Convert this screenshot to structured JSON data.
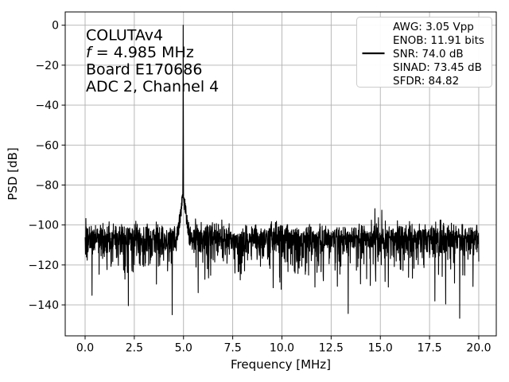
{
  "chart_data": {
    "type": "line",
    "title": "",
    "xlabel": "Frequency [MHz]",
    "ylabel": "PSD [dB]",
    "xlim": [
      -1.01,
      20.89
    ],
    "ylim": [
      -155.5,
      6.65
    ],
    "xticks": [
      0.0,
      2.5,
      5.0,
      7.5,
      10.0,
      12.5,
      15.0,
      17.5,
      20.0
    ],
    "yticks": [
      0,
      -20,
      -40,
      -60,
      -80,
      -100,
      -120,
      -140
    ],
    "grid": true,
    "legend_position": "upper right",
    "colors": {
      "trace": "#000000",
      "grid": "#b0b0b0",
      "axes": "#000000",
      "legend_edge": "#cccccc",
      "background": "#ffffff"
    },
    "annotation": {
      "lines": [
        "COLUTAv4",
        "f = 4.985 MHz",
        "Board E170686",
        "ADC 2, Channel 4"
      ],
      "italic_f_line": 1
    },
    "legend": {
      "marker": "line",
      "marker_entry_index": 2,
      "entries": [
        "AWG: 3.05 Vpp",
        "ENOB: 11.91 bits",
        "SNR: 74.0 dB",
        "SINAD: 73.45 dB",
        "SFDR: 84.82"
      ]
    },
    "signal": {
      "fundamental": {
        "freq_mhz": 4.985,
        "level_db": 0
      },
      "skirt": {
        "base_db": -84.5,
        "slope_db_per_mhz": 72,
        "visible_above_db": -115
      },
      "spurs": [
        {
          "freq_mhz": 0.04,
          "level_db": -97.5
        },
        {
          "freq_mhz": 9.93,
          "level_db": -99
        },
        {
          "freq_mhz": 10.2,
          "level_db": -103
        },
        {
          "freq_mhz": 14.55,
          "level_db": -99
        },
        {
          "freq_mhz": 14.72,
          "level_db": -93
        },
        {
          "freq_mhz": 14.9,
          "level_db": -96
        },
        {
          "freq_mhz": 15.08,
          "level_db": -94
        },
        {
          "freq_mhz": 15.25,
          "level_db": -98
        },
        {
          "freq_mhz": 15.45,
          "level_db": -102
        }
      ],
      "noise_floor": {
        "median_db": -107.5,
        "dense_band_db": [
          -120,
          -104
        ],
        "top_spikes_db": -100,
        "deep_spikes_db": -148,
        "points": 2048
      }
    }
  }
}
